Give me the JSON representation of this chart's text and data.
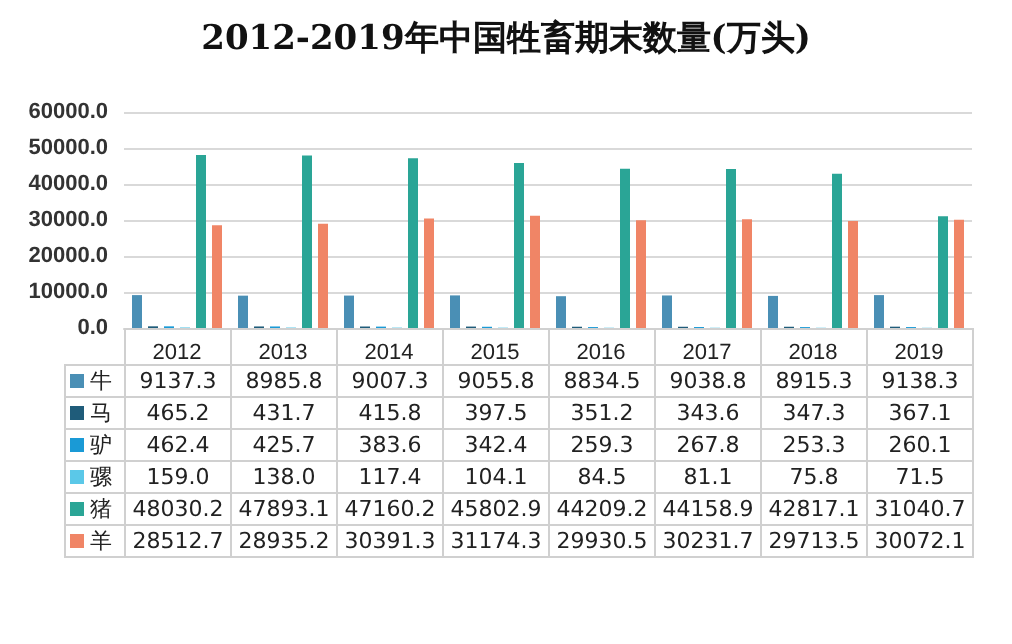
{
  "chart_data": {
    "type": "bar",
    "title": "2012-2019年中国牲畜期末数量(万头)",
    "categories": [
      "2012",
      "2013",
      "2014",
      "2015",
      "2016",
      "2017",
      "2018",
      "2019"
    ],
    "ylim": [
      0,
      60000
    ],
    "yticks": [
      {
        "value": 0,
        "label": "0.0"
      },
      {
        "value": 10000,
        "label": "10000.0"
      },
      {
        "value": 20000,
        "label": "20000.0"
      },
      {
        "value": 30000,
        "label": "30000.0"
      },
      {
        "value": 40000,
        "label": "40000.0"
      },
      {
        "value": 50000,
        "label": "50000.0"
      },
      {
        "value": 60000,
        "label": "60000.0"
      }
    ],
    "grid": "y",
    "legend": "bottom",
    "series": [
      {
        "name": "牛",
        "color": "#4a8fb5",
        "values": [
          9137.3,
          8985.8,
          9007.3,
          9055.8,
          8834.5,
          9038.8,
          8915.3,
          9138.3
        ],
        "value_labels": [
          "9137.3",
          "8985.8",
          "9007.3",
          "9055.8",
          "8834.5",
          "9038.8",
          "8915.3",
          "9138.3"
        ]
      },
      {
        "name": "马",
        "color": "#1f5c7a",
        "values": [
          465.2,
          431.7,
          415.8,
          397.5,
          351.2,
          343.6,
          347.3,
          367.1
        ],
        "value_labels": [
          "465.2",
          "431.7",
          "415.8",
          "397.5",
          "351.2",
          "343.6",
          "347.3",
          "367.1"
        ]
      },
      {
        "name": "驴",
        "color": "#1a9ad6",
        "values": [
          462.4,
          425.7,
          383.6,
          342.4,
          259.3,
          267.8,
          253.3,
          260.1
        ],
        "value_labels": [
          "462.4",
          "425.7",
          "383.6",
          "342.4",
          "259.3",
          "267.8",
          "253.3",
          "260.1"
        ]
      },
      {
        "name": "骡",
        "color": "#5bc8e8",
        "values": [
          159.0,
          138.0,
          117.4,
          104.1,
          84.5,
          81.1,
          75.8,
          71.5
        ],
        "value_labels": [
          "159.0",
          "138.0",
          "117.4",
          "104.1",
          "84.5",
          "81.1",
          "75.8",
          "71.5"
        ]
      },
      {
        "name": "猪",
        "color": "#2aa596",
        "values": [
          48030.2,
          47893.1,
          47160.2,
          45802.9,
          44209.2,
          44158.9,
          42817.1,
          31040.7
        ],
        "value_labels": [
          "48030.2",
          "47893.1",
          "47160.2",
          "45802.9",
          "44209.2",
          "44158.9",
          "42817.1",
          "31040.7"
        ]
      },
      {
        "name": "羊",
        "color": "#f08566",
        "values": [
          28512.7,
          28935.2,
          30391.3,
          31174.3,
          29930.5,
          30231.7,
          29713.5,
          30072.1
        ],
        "value_labels": [
          "28512.7",
          "28935.2",
          "30391.3",
          "31174.3",
          "29930.5",
          "30231.7",
          "29713.5",
          "30072.1"
        ]
      }
    ]
  }
}
